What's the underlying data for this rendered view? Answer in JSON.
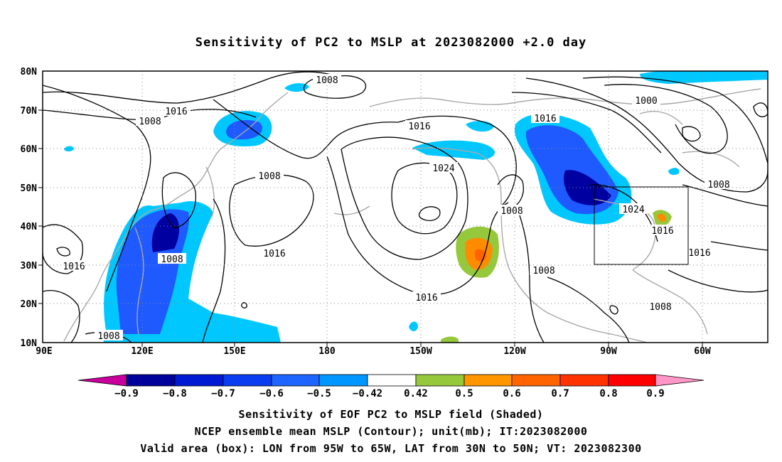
{
  "title": "Sensitivity of PC2 to MSLP at 2023082000 +2.0 day",
  "map": {
    "lon_ticks": [
      "90E",
      "120E",
      "150E",
      "180",
      "150W",
      "120W",
      "90W",
      "60W"
    ],
    "lat_ticks": [
      "80N",
      "70N",
      "60N",
      "50N",
      "40N",
      "30N",
      "20N",
      "10N"
    ],
    "contour_labels": [
      "1008",
      "1016",
      "1008",
      "1008",
      "1016",
      "1008",
      "1016",
      "1016",
      "1024",
      "1016",
      "1008",
      "1000",
      "1016",
      "1008",
      "1024",
      "1016",
      "1016",
      "1008",
      "1008",
      "1008"
    ],
    "valid_box": {
      "lon_from": "95W",
      "lon_to": "65W",
      "lat_from": "30N",
      "lat_to": "50N"
    },
    "colors": {
      "neg_strong": "#0000a0",
      "neg_mid": "#1e5aff",
      "neg_light": "#00c8ff",
      "pos_light": "#96c83c",
      "pos_mid": "#ff8c00",
      "coast": "#a8a8a8"
    }
  },
  "colorbar": {
    "labels": [
      "−0.9",
      "−0.8",
      "−0.7",
      "−0.6",
      "−0.5",
      "−0.42",
      "0.42",
      "0.5",
      "0.6",
      "0.7",
      "0.8",
      "0.9"
    ],
    "colors": [
      "#c8009b",
      "#00009b",
      "#0019d2",
      "#0a3cf0",
      "#1e64ff",
      "#0096ff",
      "#00c8ff",
      "#ffffff",
      "#96c83c",
      "#ff9600",
      "#ff6400",
      "#ff3200",
      "#ff0000",
      "#ff96c8"
    ]
  },
  "captions": [
    "Sensitivity of EOF PC2 to MSLP field (Shaded)",
    "NCEP ensemble mean MSLP (Contour); unit(mb); IT:2023082000",
    "Valid area (box): LON from 95W to 65W, LAT from 30N to 50N; VT: 2023082300"
  ]
}
